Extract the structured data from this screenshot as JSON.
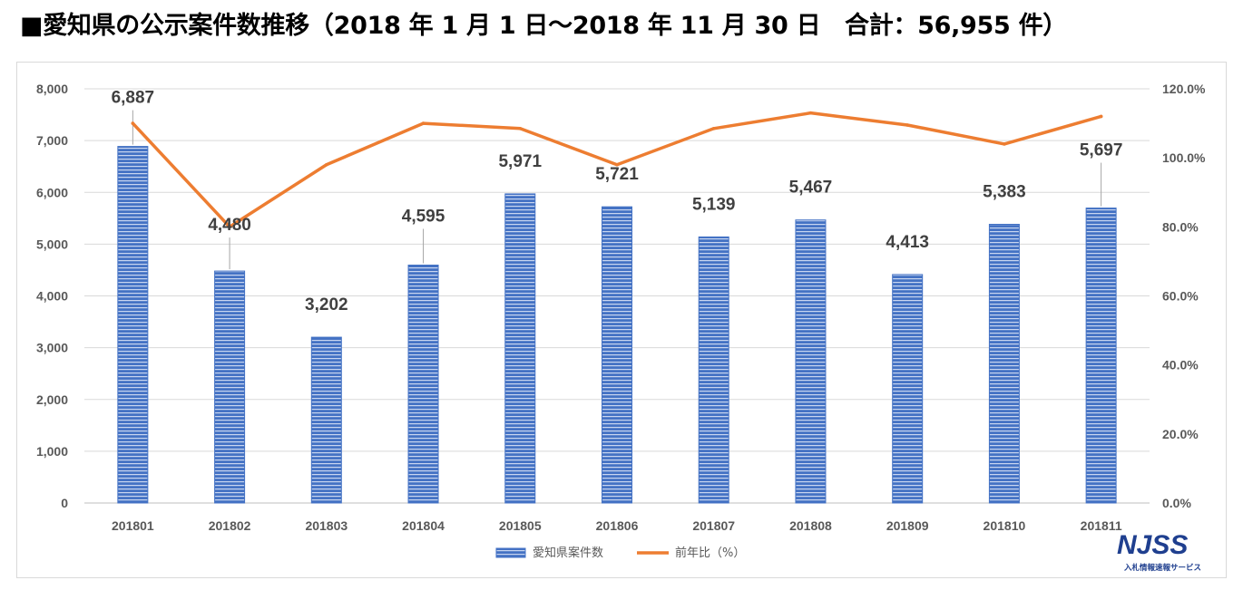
{
  "title": "■愛知県の公示案件数推移（2018 年 1 月 1 日～2018 年 11 月 30 日　合計：56,955 件）",
  "logo": {
    "text": "NJSS",
    "subtitle": "入札情報速報サービス"
  },
  "colors": {
    "bar": "#4472c4",
    "bar_stripe": "#ffffff",
    "line": "#ed7d31",
    "grid": "#d9d9d9"
  },
  "chart_data": {
    "type": "bar",
    "categories": [
      "201801",
      "201802",
      "201803",
      "201804",
      "201805",
      "201806",
      "201807",
      "201808",
      "201809",
      "201810",
      "201811"
    ],
    "series": [
      {
        "name": "愛知県案件数",
        "type": "bar",
        "axis": "left",
        "values": [
          6887,
          4480,
          3202,
          4595,
          5971,
          5721,
          5139,
          5467,
          4413,
          5383,
          5697
        ],
        "labels": [
          "6,887",
          "4,480",
          "3,202",
          "4,595",
          "5,971",
          "5,721",
          "5,139",
          "5,467",
          "4,413",
          "5,383",
          "5,697"
        ]
      },
      {
        "name": "前年比（%）",
        "type": "line",
        "axis": "right",
        "values": [
          110.0,
          80.0,
          98.0,
          110.0,
          108.5,
          98.0,
          108.5,
          113.0,
          109.5,
          104.0,
          112.0
        ]
      }
    ],
    "y_left": {
      "min": 0,
      "max": 8000,
      "step": 1000,
      "ticks": [
        "0",
        "1,000",
        "2,000",
        "3,000",
        "4,000",
        "5,000",
        "6,000",
        "7,000",
        "8,000"
      ]
    },
    "y_right": {
      "min": 0,
      "max": 120,
      "step": 20,
      "ticks": [
        "0.0%",
        "20.0%",
        "40.0%",
        "60.0%",
        "80.0%",
        "100.0%",
        "120.0%"
      ]
    },
    "grid": true,
    "legend_position": "bottom"
  }
}
